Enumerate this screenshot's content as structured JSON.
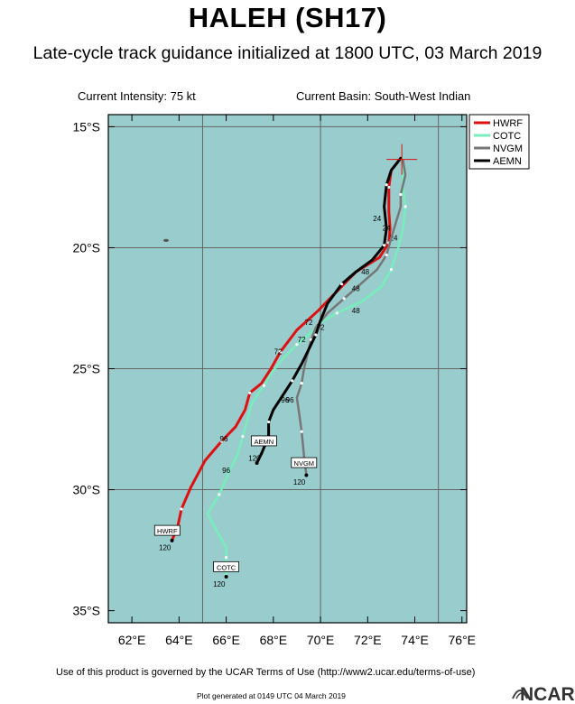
{
  "header": {
    "title": "HALEH (SH17)",
    "subtitle": "Late-cycle track guidance initialized at 1800 UTC, 03 March 2019",
    "current_intensity": "Current Intensity: 75 kt",
    "current_basin": "Current Basin: South-West Indian"
  },
  "footer": {
    "terms": "Use of this product is governed by the UCAR Terms of Use (http://www2.ucar.edu/terms-of-use)",
    "generated": "Plot generated at 0149 UTC   04 March 2019",
    "logo_text": "NCAR"
  },
  "colors": {
    "ocean": "#99cccc",
    "grid": "#666666",
    "HWRF": "#dd1111",
    "COTC": "#77eebb",
    "NVGM": "#777777",
    "AEMN": "#000000",
    "init_marker": "#dd1111"
  },
  "map": {
    "projection": "lat-lon",
    "lon_range": [
      61,
      76.2
    ],
    "lat_range": [
      -35.5,
      -14.5
    ],
    "lon_ticks": [
      62,
      64,
      66,
      68,
      70,
      72,
      74,
      76
    ],
    "lon_tick_labels": [
      "62°E",
      "64°E",
      "66°E",
      "68°E",
      "70°E",
      "72°E",
      "74°E",
      "76°E"
    ],
    "lat_ticks": [
      -15,
      -20,
      -25,
      -30,
      -35
    ],
    "lat_tick_labels": [
      "15°S",
      "20°S",
      "25°S",
      "30°S",
      "35°S"
    ],
    "grid_lons": [
      65,
      70,
      75
    ],
    "grid_lats": [
      -15,
      -20,
      -25,
      -30
    ],
    "legend_position": "top-right",
    "legend": [
      "HWRF",
      "COTC",
      "NVGM",
      "AEMN"
    ],
    "initial_position": [
      73.45,
      -16.35
    ],
    "island": [
      63.45,
      -19.7
    ]
  },
  "chart_data": {
    "type": "map-tracks",
    "tracks": [
      {
        "name": "HWRF",
        "points": [
          [
            73.4,
            -16.3
          ],
          [
            73.0,
            -16.8
          ],
          [
            72.9,
            -17.5
          ],
          [
            72.9,
            -18.5
          ],
          [
            72.95,
            -19.2
          ],
          [
            72.9,
            -19.8
          ],
          [
            72.5,
            -20.4
          ],
          [
            71.5,
            -21.0
          ],
          [
            70.6,
            -21.9
          ],
          [
            69.9,
            -22.6
          ],
          [
            69.0,
            -23.4
          ],
          [
            68.3,
            -24.3
          ],
          [
            67.9,
            -25.0
          ],
          [
            67.5,
            -25.6
          ],
          [
            67.0,
            -26.0
          ],
          [
            66.8,
            -26.7
          ],
          [
            66.4,
            -27.4
          ],
          [
            65.8,
            -28.0
          ],
          [
            65.1,
            -28.8
          ],
          [
            64.5,
            -29.9
          ],
          [
            64.1,
            -30.8
          ],
          [
            63.95,
            -31.5
          ],
          [
            63.7,
            -32.1
          ]
        ],
        "labels": [
          {
            "text": "72",
            "at": [
              68.2,
              -24.4
            ]
          },
          {
            "text": "96",
            "at": [
              65.9,
              -28.0
            ]
          },
          {
            "text": "120",
            "at": [
              63.4,
              -32.5
            ]
          }
        ],
        "end_box": {
          "text": "HWRF",
          "at": [
            63.5,
            -31.7
          ]
        }
      },
      {
        "name": "COTC",
        "points": [
          [
            73.5,
            -16.3
          ],
          [
            73.5,
            -17.5
          ],
          [
            73.6,
            -18.3
          ],
          [
            73.5,
            -19.2
          ],
          [
            73.3,
            -20.0
          ],
          [
            73.0,
            -20.9
          ],
          [
            72.6,
            -21.6
          ],
          [
            71.8,
            -22.2
          ],
          [
            70.7,
            -22.7
          ],
          [
            70.0,
            -23.1
          ],
          [
            69.6,
            -23.5
          ],
          [
            69.0,
            -24.0
          ],
          [
            68.4,
            -24.6
          ],
          [
            67.9,
            -25.2
          ],
          [
            67.6,
            -25.7
          ],
          [
            67.1,
            -26.4
          ],
          [
            66.9,
            -27.1
          ],
          [
            66.7,
            -27.8
          ],
          [
            66.5,
            -28.5
          ],
          [
            66.2,
            -29.1
          ],
          [
            65.7,
            -30.2
          ],
          [
            65.2,
            -31.0
          ],
          [
            66.0,
            -32.4
          ],
          [
            66.0,
            -32.8
          ],
          [
            66.0,
            -33.6
          ]
        ],
        "labels": [
          {
            "text": "24",
            "at": [
              73.1,
              -19.7
            ]
          },
          {
            "text": "48",
            "at": [
              71.5,
              -22.7
            ]
          },
          {
            "text": "72",
            "at": [
              69.2,
              -23.9
            ]
          },
          {
            "text": "96",
            "at": [
              66.0,
              -29.3
            ]
          },
          {
            "text": "120",
            "at": [
              65.7,
              -34.0
            ]
          }
        ],
        "end_box": {
          "text": "COTC",
          "at": [
            66.0,
            -33.2
          ]
        }
      },
      {
        "name": "NVGM",
        "points": [
          [
            73.5,
            -16.4
          ],
          [
            73.6,
            -17.0
          ],
          [
            73.4,
            -17.8
          ],
          [
            73.4,
            -18.3
          ],
          [
            73.0,
            -19.6
          ],
          [
            72.8,
            -20.3
          ],
          [
            72.4,
            -20.9
          ],
          [
            71.7,
            -21.5
          ],
          [
            71.0,
            -22.1
          ],
          [
            70.3,
            -22.7
          ],
          [
            69.8,
            -23.3
          ],
          [
            69.6,
            -23.8
          ],
          [
            69.5,
            -24.2
          ],
          [
            69.3,
            -25.0
          ],
          [
            69.2,
            -25.6
          ],
          [
            69.0,
            -26.2
          ],
          [
            69.1,
            -26.9
          ],
          [
            69.2,
            -27.6
          ],
          [
            69.3,
            -28.6
          ],
          [
            69.4,
            -29.4
          ]
        ],
        "labels": [
          {
            "text": "24",
            "at": [
              72.8,
              -19.3
            ]
          },
          {
            "text": "48",
            "at": [
              71.5,
              -21.8
            ]
          },
          {
            "text": "72",
            "at": [
              69.5,
              -23.2
            ]
          },
          {
            "text": "96",
            "at": [
              68.7,
              -26.4
            ]
          },
          {
            "text": "120",
            "at": [
              69.1,
              -29.8
            ]
          }
        ],
        "end_box": {
          "text": "NVGM",
          "at": [
            69.3,
            -28.9
          ]
        }
      },
      {
        "name": "AEMN",
        "points": [
          [
            73.4,
            -16.3
          ],
          [
            73.0,
            -16.8
          ],
          [
            72.8,
            -17.4
          ],
          [
            72.7,
            -18.3
          ],
          [
            72.8,
            -19.2
          ],
          [
            72.7,
            -19.9
          ],
          [
            72.2,
            -20.5
          ],
          [
            71.5,
            -21.0
          ],
          [
            70.9,
            -21.5
          ],
          [
            70.3,
            -22.3
          ],
          [
            70.0,
            -23.0
          ],
          [
            69.8,
            -23.6
          ],
          [
            69.5,
            -24.2
          ],
          [
            69.2,
            -24.8
          ],
          [
            68.8,
            -25.5
          ],
          [
            68.4,
            -26.1
          ],
          [
            68.0,
            -26.7
          ],
          [
            67.8,
            -27.2
          ],
          [
            67.8,
            -27.8
          ],
          [
            67.5,
            -28.5
          ],
          [
            67.3,
            -28.9
          ]
        ],
        "labels": [
          {
            "text": "24",
            "at": [
              72.4,
              -18.9
            ]
          },
          {
            "text": "48",
            "at": [
              71.9,
              -21.1
            ]
          },
          {
            "text": "72",
            "at": [
              70.0,
              -23.4
            ]
          },
          {
            "text": "96",
            "at": [
              68.5,
              -26.4
            ]
          },
          {
            "text": "120",
            "at": [
              67.2,
              -28.8
            ]
          }
        ],
        "end_box": {
          "text": "AEMN",
          "at": [
            67.6,
            -28.0
          ]
        }
      }
    ]
  }
}
